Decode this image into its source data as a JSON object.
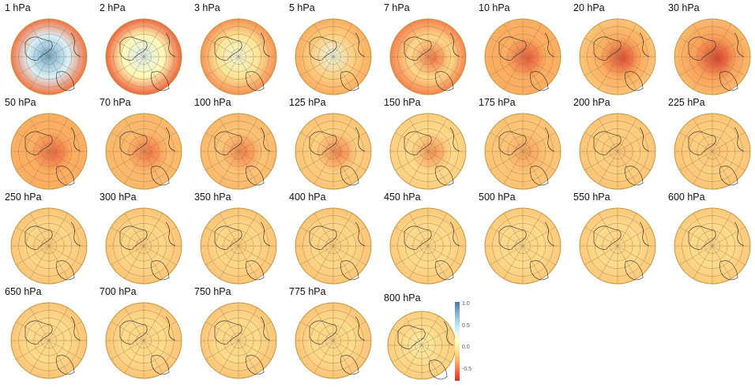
{
  "figure": {
    "colormap": [
      "#d73027",
      "#f46d43",
      "#fdae61",
      "#fee090",
      "#ffffbf",
      "#e0f3f8",
      "#abd9e9",
      "#74add1",
      "#4575b4"
    ],
    "colorbar": {
      "range": [
        -0.75,
        1.05
      ],
      "ticks": [
        "1.0",
        "0.5",
        "0.0",
        "-0.5"
      ],
      "tick_values": [
        1.0,
        0.5,
        0.0,
        -0.5
      ]
    },
    "panels": [
      {
        "title": "1 hPa",
        "center": 0.85,
        "mid": 0.4,
        "edge": -0.5
      },
      {
        "title": "2 hPa",
        "center": 0.4,
        "mid": 0.1,
        "edge": -0.55
      },
      {
        "title": "3 hPa",
        "center": 0.25,
        "mid": -0.05,
        "edge": -0.4
      },
      {
        "title": "5 hPa",
        "center": 0.3,
        "mid": -0.15,
        "edge": -0.3
      },
      {
        "title": "7 hPa",
        "center": -0.5,
        "mid": -0.1,
        "edge": -0.45
      },
      {
        "title": "10 hPa",
        "center": -0.6,
        "mid": -0.3,
        "edge": -0.3
      },
      {
        "title": "20 hPa",
        "center": -0.65,
        "mid": -0.3,
        "edge": -0.2
      },
      {
        "title": "30 hPa",
        "center": -0.7,
        "mid": -0.35,
        "edge": -0.25
      },
      {
        "title": "50 hPa",
        "center": -0.55,
        "mid": -0.3,
        "edge": -0.3
      },
      {
        "title": "70 hPa",
        "center": -0.5,
        "mid": -0.25,
        "edge": -0.25
      },
      {
        "title": "100 hPa",
        "center": -0.45,
        "mid": -0.2,
        "edge": -0.25
      },
      {
        "title": "125 hPa",
        "center": -0.45,
        "mid": -0.15,
        "edge": -0.2
      },
      {
        "title": "150 hPa",
        "center": -0.4,
        "mid": -0.1,
        "edge": -0.15
      },
      {
        "title": "175 hPa",
        "center": -0.35,
        "mid": -0.2,
        "edge": -0.2
      },
      {
        "title": "200 hPa",
        "center": -0.2,
        "mid": -0.15,
        "edge": -0.2
      },
      {
        "title": "225 hPa",
        "center": -0.2,
        "mid": -0.15,
        "edge": -0.2
      },
      {
        "title": "250 hPa",
        "center": -0.18,
        "mid": -0.12,
        "edge": -0.2
      },
      {
        "title": "300 hPa",
        "center": -0.15,
        "mid": -0.12,
        "edge": -0.2
      },
      {
        "title": "350 hPa",
        "center": -0.15,
        "mid": -0.12,
        "edge": -0.2
      },
      {
        "title": "400 hPa",
        "center": -0.15,
        "mid": -0.12,
        "edge": -0.2
      },
      {
        "title": "450 hPa",
        "center": -0.12,
        "mid": -0.1,
        "edge": -0.18
      },
      {
        "title": "500 hPa",
        "center": -0.12,
        "mid": -0.1,
        "edge": -0.18
      },
      {
        "title": "550 hPa",
        "center": -0.12,
        "mid": -0.1,
        "edge": -0.18
      },
      {
        "title": "600 hPa",
        "center": -0.12,
        "mid": -0.1,
        "edge": -0.18
      },
      {
        "title": "650 hPa",
        "center": -0.12,
        "mid": -0.1,
        "edge": -0.2
      },
      {
        "title": "700 hPa",
        "center": -0.12,
        "mid": -0.1,
        "edge": -0.2
      },
      {
        "title": "750 hPa",
        "center": -0.12,
        "mid": -0.1,
        "edge": -0.2
      },
      {
        "title": "775 hPa",
        "center": -0.12,
        "mid": -0.1,
        "edge": -0.2
      },
      {
        "title": "800 hPa",
        "center": 0.05,
        "mid": -0.1,
        "edge": -0.15
      }
    ]
  }
}
